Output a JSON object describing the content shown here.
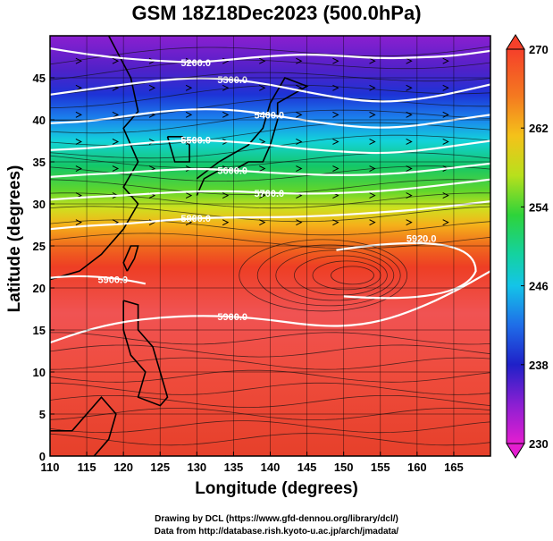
{
  "title": "GSM 18Z18Dec2023 (500.0hPa)",
  "xlabel": "Longitude (degrees)",
  "ylabel": "Latitude  (degrees)",
  "credits": [
    "Drawing by DCL (https://www.gfd-dennou.org/library/dcl/)",
    "Data from http://database.rish.kyoto-u.ac.jp/arch/jmadata/"
  ],
  "map": {
    "lon_range": [
      110,
      170
    ],
    "lat_range": [
      0,
      50
    ],
    "lon_ticks": [
      110,
      115,
      120,
      125,
      130,
      135,
      140,
      145,
      150,
      155,
      160,
      165
    ],
    "lat_ticks": [
      0,
      5,
      10,
      15,
      20,
      25,
      30,
      35,
      40,
      45
    ],
    "colorbar": {
      "min": 230,
      "max": 270,
      "tick_labels": [
        "270",
        "262",
        "254",
        "246",
        "238",
        "230"
      ],
      "colors": [
        "#e020c8",
        "#7b1fd6",
        "#1030d8",
        "#1d8ef0",
        "#10d8d8",
        "#12c96a",
        "#7ce02c",
        "#d8e020",
        "#f3a21a",
        "#ef4e1c",
        "#f0403c",
        "#e84a4a"
      ]
    },
    "contours": [
      {
        "label": "5200.0",
        "lats": [
          48.5,
          47.8,
          47.3,
          47.0,
          46.8,
          47.2,
          47.6,
          47.8,
          47.6,
          47.3,
          47.4,
          47.6,
          48.2
        ]
      },
      {
        "label": "5300.0",
        "lats": [
          43.0,
          43.6,
          44.2,
          44.7,
          45.0,
          44.8,
          44.2,
          43.3,
          42.5,
          42.1,
          42.4,
          43.2,
          44.2
        ]
      },
      {
        "label": "5400.0",
        "lats": [
          39.6,
          39.8,
          40.4,
          41.0,
          41.3,
          41.2,
          40.6,
          39.9,
          39.3,
          39.0,
          39.3,
          40.0,
          40.6
        ]
      },
      {
        "label": "5500.0",
        "lats": [
          36.4,
          36.6,
          37.0,
          37.4,
          37.6,
          37.4,
          37.0,
          36.5,
          36.2,
          36.0,
          36.3,
          36.9,
          37.5
        ]
      },
      {
        "label": "5600.0",
        "lats": [
          33.2,
          33.5,
          33.7,
          34.0,
          34.2,
          34.0,
          33.7,
          33.5,
          33.4,
          33.5,
          33.8,
          34.3,
          34.8
        ]
      },
      {
        "label": "5700.0",
        "lats": [
          30.5,
          30.8,
          31.0,
          31.3,
          31.5,
          31.5,
          31.3,
          31.2,
          31.3,
          31.5,
          31.9,
          32.4,
          32.9
        ]
      },
      {
        "label": "5800.0",
        "lats": [
          27.0,
          27.4,
          27.6,
          28.0,
          28.3,
          28.4,
          28.4,
          28.5,
          28.7,
          29.0,
          29.3,
          29.8,
          30.3
        ]
      },
      {
        "label": "5900.0",
        "lats": [
          13.5,
          15.0,
          16.0,
          16.5,
          16.7,
          16.6,
          16.2,
          15.6,
          15.4,
          16.0,
          17.5,
          19.5,
          22.0
        ]
      }
    ],
    "high_center": {
      "lon": 160,
      "lat": 21.5,
      "label": "5920.0"
    },
    "low_label": {
      "lon": 117,
      "lat": 21.0,
      "label": "5900.0"
    }
  }
}
